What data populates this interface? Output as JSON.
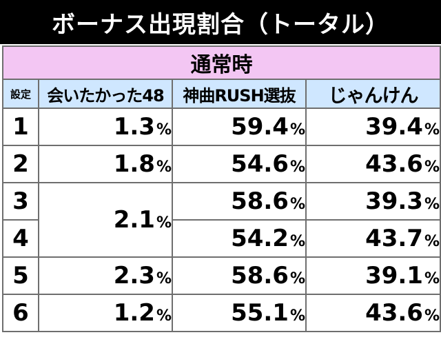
{
  "title": "ボーナス出現割合（トータル）",
  "section_label": "通常時",
  "headers": {
    "setting": "設定",
    "col1": "会いたかった48",
    "col2": "神曲RUSH選抜",
    "col3": "じゃんけん"
  },
  "unit": "%",
  "rows": [
    {
      "setting": "1",
      "col1": "1.3",
      "col2": "59.4",
      "col3": "39.4"
    },
    {
      "setting": "2",
      "col1": "1.8",
      "col2": "54.6",
      "col3": "43.6"
    },
    {
      "setting": "3",
      "col1": "2.1",
      "col2": "58.6",
      "col3": "39.3"
    },
    {
      "setting": "4",
      "col2": "54.2",
      "col3": "43.7"
    },
    {
      "setting": "5",
      "col1": "2.3",
      "col2": "58.6",
      "col3": "39.1"
    },
    {
      "setting": "6",
      "col1": "1.2",
      "col2": "55.1",
      "col3": "43.6"
    }
  ]
}
